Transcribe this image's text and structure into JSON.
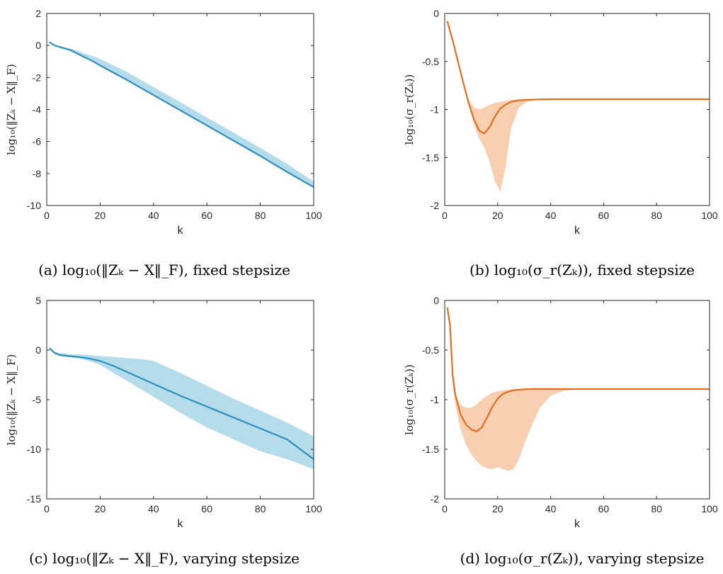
{
  "colors": {
    "blue_line": "#2f8fbd",
    "blue_band": "#b5dcea",
    "orange_line": "#e36f1e",
    "orange_band": "#f9cfb2"
  },
  "chart_data": [
    {
      "type": "area",
      "caption": "(a) log₁₀(‖Zₖ − X‖_F), fixed stepsize",
      "xlabel": "k",
      "ylabel": "log₁₀(‖Zₖ − X‖_F)",
      "xlim": [
        0,
        100
      ],
      "ylim": [
        -10,
        2
      ],
      "xticks": [
        0,
        20,
        40,
        60,
        80,
        100
      ],
      "yticks": [
        2,
        0,
        -2,
        -4,
        -6,
        -8,
        -10
      ],
      "grid": false,
      "series": [
        {
          "x": [
            1,
            3,
            6,
            9,
            12,
            15,
            18,
            20,
            25,
            30,
            40,
            50,
            60,
            70,
            80,
            90,
            100
          ],
          "mean": [
            0.2,
            0.0,
            -0.15,
            -0.3,
            -0.55,
            -0.8,
            -1.05,
            -1.25,
            -1.7,
            -2.15,
            -3.1,
            -4.05,
            -5.0,
            -5.95,
            -6.9,
            -7.9,
            -8.85
          ],
          "upper": [
            0.25,
            0.05,
            -0.1,
            -0.2,
            -0.35,
            -0.55,
            -0.7,
            -0.85,
            -1.25,
            -1.65,
            -2.6,
            -3.55,
            -4.5,
            -5.45,
            -6.4,
            -7.4,
            -8.5
          ],
          "lower": [
            0.15,
            -0.05,
            -0.2,
            -0.35,
            -0.6,
            -0.85,
            -1.1,
            -1.3,
            -1.75,
            -2.2,
            -3.15,
            -4.1,
            -5.05,
            -6.0,
            -6.95,
            -7.95,
            -8.9
          ]
        }
      ]
    },
    {
      "type": "area",
      "caption": "(b) log₁₀(σ_r(Zₖ)), fixed stepsize",
      "xlabel": "k",
      "ylabel": "log₁₀(σ_r(Zₖ))",
      "xlim": [
        0,
        100
      ],
      "ylim": [
        -2,
        0
      ],
      "xticks": [
        0,
        20,
        40,
        60,
        80,
        100
      ],
      "yticks": [
        0,
        -0.5,
        -1,
        -1.5,
        -2
      ],
      "grid": false,
      "series": [
        {
          "x": [
            1,
            3,
            5,
            7,
            9,
            11,
            13,
            15,
            17,
            19,
            21,
            23,
            25,
            28,
            31,
            35,
            40,
            50,
            60,
            70,
            80,
            90,
            100
          ],
          "mean": [
            -0.08,
            -0.28,
            -0.5,
            -0.72,
            -0.93,
            -1.1,
            -1.22,
            -1.25,
            -1.18,
            -1.07,
            -0.99,
            -0.95,
            -0.92,
            -0.905,
            -0.9,
            -0.895,
            -0.893,
            -0.893,
            -0.893,
            -0.893,
            -0.893,
            -0.893,
            -0.893
          ],
          "upper": [
            -0.08,
            -0.28,
            -0.5,
            -0.72,
            -0.9,
            -0.98,
            -1.0,
            -0.98,
            -0.95,
            -0.93,
            -0.92,
            -0.91,
            -0.9,
            -0.895,
            -0.893,
            -0.893,
            -0.893,
            -0.893,
            -0.893,
            -0.893,
            -0.893,
            -0.893,
            -0.893
          ],
          "lower": [
            -0.08,
            -0.28,
            -0.5,
            -0.72,
            -0.95,
            -1.15,
            -1.3,
            -1.4,
            -1.55,
            -1.75,
            -1.86,
            -1.6,
            -1.2,
            -0.98,
            -0.92,
            -0.9,
            -0.895,
            -0.893,
            -0.893,
            -0.893,
            -0.893,
            -0.893,
            -0.893
          ]
        }
      ]
    },
    {
      "type": "area",
      "caption": "(c) log₁₀(‖Zₖ − X‖_F), varying stepsize",
      "xlabel": "k",
      "ylabel": "log₁₀(‖Zₖ − X‖_F)",
      "xlim": [
        0,
        100
      ],
      "ylim": [
        -15,
        5
      ],
      "xticks": [
        0,
        20,
        40,
        60,
        80,
        100
      ],
      "yticks": [
        5,
        0,
        -5,
        -10,
        -15
      ],
      "grid": false,
      "series": [
        {
          "x": [
            1,
            3,
            5,
            8,
            12,
            16,
            20,
            25,
            30,
            35,
            40,
            50,
            60,
            70,
            80,
            90,
            100
          ],
          "mean": [
            0.2,
            -0.3,
            -0.5,
            -0.6,
            -0.7,
            -0.85,
            -1.1,
            -1.6,
            -2.2,
            -2.8,
            -3.4,
            -4.6,
            -5.7,
            -6.8,
            -7.9,
            -9.0,
            -11.0
          ],
          "upper": [
            0.2,
            -0.2,
            -0.3,
            -0.4,
            -0.45,
            -0.5,
            -0.6,
            -0.7,
            -0.8,
            -0.9,
            -1.1,
            -2.3,
            -3.6,
            -4.9,
            -6.1,
            -7.3,
            -8.7
          ],
          "lower": [
            0.2,
            -0.4,
            -0.6,
            -0.7,
            -0.85,
            -1.1,
            -1.5,
            -2.3,
            -3.1,
            -3.9,
            -4.7,
            -6.3,
            -7.8,
            -9.0,
            -10.2,
            -11.0,
            -12.0
          ]
        }
      ]
    },
    {
      "type": "area",
      "caption": "(d) log₁₀(σ_r(Zₖ)), varying stepsize",
      "xlabel": "k",
      "ylabel": "log₁₀(σ_r(Zₖ))",
      "xlim": [
        0,
        100
      ],
      "ylim": [
        -2,
        0
      ],
      "xticks": [
        0,
        20,
        40,
        60,
        80,
        100
      ],
      "yticks": [
        0,
        -0.5,
        -1,
        -1.5,
        -2
      ],
      "grid": false,
      "series": [
        {
          "x": [
            1,
            2,
            3,
            4,
            6,
            8,
            10,
            12,
            14,
            16,
            18,
            20,
            22,
            24,
            26,
            28,
            30,
            33,
            36,
            40,
            45,
            50,
            60,
            70,
            80,
            90,
            100
          ],
          "mean": [
            -0.07,
            -0.25,
            -0.75,
            -0.95,
            -1.15,
            -1.25,
            -1.3,
            -1.32,
            -1.28,
            -1.18,
            -1.07,
            -0.99,
            -0.94,
            -0.92,
            -0.905,
            -0.9,
            -0.895,
            -0.893,
            -0.893,
            -0.893,
            -0.893,
            -0.893,
            -0.893,
            -0.893,
            -0.893,
            -0.893,
            -0.893
          ],
          "upper": [
            -0.07,
            -0.25,
            -0.75,
            -0.95,
            -1.05,
            -1.08,
            -1.08,
            -1.05,
            -1.0,
            -0.96,
            -0.93,
            -0.915,
            -0.905,
            -0.9,
            -0.895,
            -0.893,
            -0.893,
            -0.893,
            -0.893,
            -0.893,
            -0.893,
            -0.893,
            -0.893,
            -0.893,
            -0.893,
            -0.893,
            -0.893
          ],
          "lower": [
            -0.07,
            -0.25,
            -0.85,
            -1.05,
            -1.3,
            -1.45,
            -1.55,
            -1.62,
            -1.67,
            -1.69,
            -1.7,
            -1.68,
            -1.7,
            -1.72,
            -1.7,
            -1.6,
            -1.45,
            -1.25,
            -1.08,
            -0.96,
            -0.91,
            -0.895,
            -0.893,
            -0.893,
            -0.893,
            -0.893,
            -0.893
          ]
        }
      ]
    }
  ]
}
